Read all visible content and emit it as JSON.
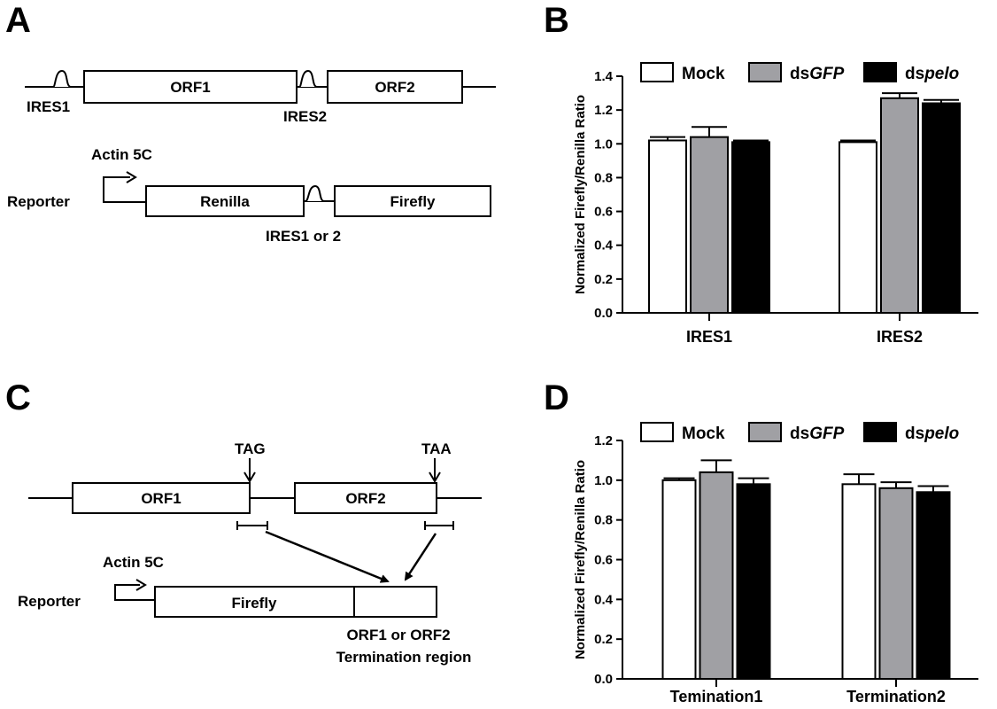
{
  "panels": {
    "A": {
      "letter": "A",
      "genome": {
        "orf1": "ORF1",
        "orf2": "ORF2",
        "ires1": "IRES1",
        "ires2": "IRES2"
      },
      "reporter": {
        "promoter": "Actin 5C",
        "label": "Reporter",
        "renilla": "Renilla",
        "firefly": "Firefly",
        "ires_label": "IRES1 or 2"
      }
    },
    "B": {
      "letter": "B"
    },
    "C": {
      "letter": "C",
      "genome": {
        "orf1": "ORF1",
        "orf2": "ORF2",
        "tag": "TAG",
        "taa": "TAA"
      },
      "reporter": {
        "promoter": "Actin 5C",
        "label": "Reporter",
        "firefly": "Firefly",
        "region_line1": "ORF1 or ORF2",
        "region_line2": "Termination region"
      }
    },
    "D": {
      "letter": "D"
    }
  },
  "chart_data": [
    {
      "panel": "B",
      "type": "bar",
      "categories": [
        "IRES1",
        "IRES2"
      ],
      "ylabel": "Normalized Firefly/Renilla Ratio",
      "ylim": [
        0,
        1.4
      ],
      "yticks": [
        "0.0",
        "0.2",
        "0.4",
        "0.6",
        "0.8",
        "1.0",
        "1.2",
        "1.4"
      ],
      "legend_position": "top",
      "series": [
        {
          "name": "Mock",
          "name_prefix": "Mock",
          "name_italic": "",
          "color": "#ffffff",
          "values": [
            1.02,
            1.01
          ],
          "errors": [
            0.02,
            0.01
          ]
        },
        {
          "name": "dsGFP",
          "name_prefix": "ds",
          "name_italic": "GFP",
          "color": "#a0a0a4",
          "values": [
            1.04,
            1.27
          ],
          "errors": [
            0.06,
            0.03
          ]
        },
        {
          "name": "dspelo",
          "name_prefix": "ds",
          "name_italic": "pelo",
          "color": "#000000",
          "values": [
            1.01,
            1.24
          ],
          "errors": [
            0.01,
            0.02
          ]
        }
      ]
    },
    {
      "panel": "D",
      "type": "bar",
      "categories": [
        "Temination1",
        "Termination2"
      ],
      "ylabel": "Normalized Firefly/Renilla Ratio",
      "ylim": [
        0,
        1.2
      ],
      "yticks": [
        "0.0",
        "0.2",
        "0.4",
        "0.6",
        "0.8",
        "1.0",
        "1.2"
      ],
      "legend_position": "top",
      "series": [
        {
          "name": "Mock",
          "name_prefix": "Mock",
          "name_italic": "",
          "color": "#ffffff",
          "values": [
            1.0,
            0.98
          ],
          "errors": [
            0.01,
            0.05
          ]
        },
        {
          "name": "dsGFP",
          "name_prefix": "ds",
          "name_italic": "GFP",
          "color": "#a0a0a4",
          "values": [
            1.04,
            0.96
          ],
          "errors": [
            0.06,
            0.03
          ]
        },
        {
          "name": "dspelo",
          "name_prefix": "ds",
          "name_italic": "pelo",
          "color": "#000000",
          "values": [
            0.98,
            0.94
          ],
          "errors": [
            0.03,
            0.03
          ]
        }
      ]
    }
  ]
}
